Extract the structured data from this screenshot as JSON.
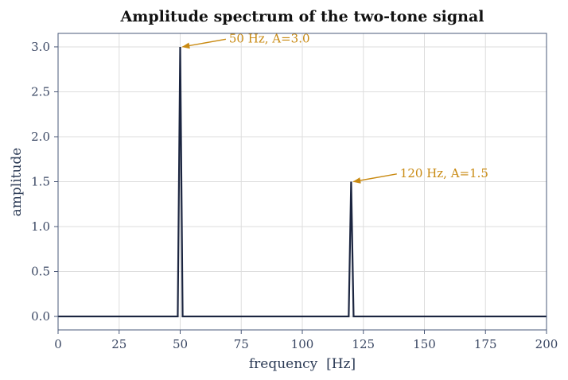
{
  "chart_data": {
    "type": "line",
    "title": "Amplitude spectrum of the two-tone signal",
    "xlabel": "frequency  [Hz]",
    "ylabel": "amplitude",
    "xlim": [
      0,
      200
    ],
    "ylim": [
      -0.15,
      3.15
    ],
    "xticks": [
      0,
      25,
      50,
      75,
      100,
      125,
      150,
      175,
      200
    ],
    "xtick_labels": [
      "0",
      "25",
      "50",
      "75",
      "100",
      "125",
      "150",
      "175",
      "200"
    ],
    "yticks": [
      0.0,
      0.5,
      1.0,
      1.5,
      2.0,
      2.5,
      3.0
    ],
    "ytick_labels": [
      "0.0",
      "0.5",
      "1.0",
      "1.5",
      "2.0",
      "2.5",
      "3.0"
    ],
    "grid": true,
    "series": [
      {
        "x": [
          0,
          49,
          50,
          51,
          119,
          120,
          121,
          200
        ],
        "y": [
          0,
          0,
          3.0,
          0,
          0,
          1.5,
          0,
          0
        ]
      }
    ],
    "annotations": [
      {
        "text": "50 Hz, A=3.0",
        "x": 50,
        "y": 3.0,
        "text_x": 70,
        "text_y": 3.05
      },
      {
        "text": "120 Hz, A=1.5",
        "x": 120,
        "y": 1.5,
        "text_x": 140,
        "text_y": 1.55
      }
    ],
    "colors": {
      "line": "#1b2540",
      "annotation": "#c98a12",
      "grid": "#dddddd",
      "axes": "#4a5878"
    }
  }
}
